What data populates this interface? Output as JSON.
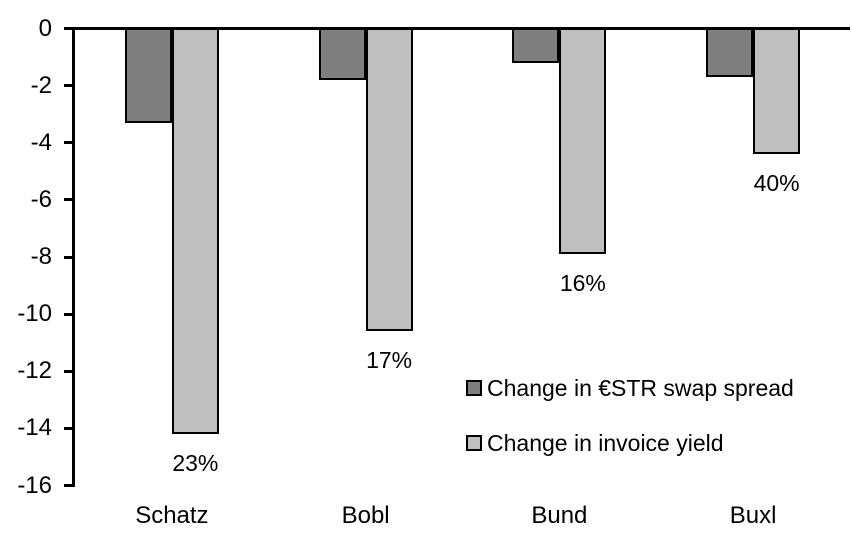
{
  "chart_data": {
    "type": "bar",
    "title": "",
    "xlabel": "",
    "ylabel": "",
    "categories": [
      "Schatz",
      "Bobl",
      "Bund",
      "Buxl"
    ],
    "series": [
      {
        "name": "Change in €STR swap spread",
        "color": "#7f7f7f",
        "values": [
          -3.3,
          -1.8,
          -1.2,
          -1.7
        ]
      },
      {
        "name": "Change in invoice yield",
        "color": "#bfbfbf",
        "values": [
          -14.2,
          -10.6,
          -7.9,
          -4.4
        ]
      }
    ],
    "bar_labels": {
      "series": "Change in invoice yield",
      "values": [
        "23%",
        "17%",
        "16%",
        "40%"
      ]
    },
    "ylim": [
      -16,
      0
    ],
    "yticks": [
      0,
      -2,
      -4,
      -6,
      -8,
      -10,
      -12,
      -14,
      -16
    ],
    "grid": false,
    "legend": {
      "position": "inside-right",
      "entries": [
        "Change in €STR swap spread",
        "Change in invoice yield"
      ]
    },
    "axis_color": "#000000",
    "bar_border_color": "#000000",
    "text_color": "#000000"
  }
}
